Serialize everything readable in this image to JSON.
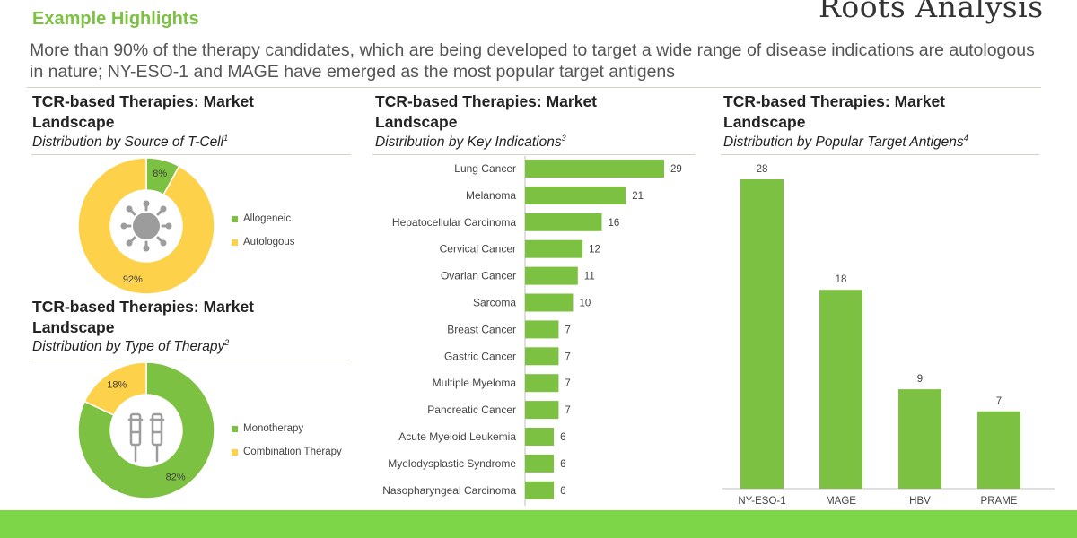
{
  "header": {
    "title": "Example Highlights",
    "subtitle": "More than 90% of the therapy candidates, which are being developed to target a wide range of disease indications are autologous in nature; NY-ESO-1 and MAGE have emerged as the most popular target antigens",
    "logo_text": "Roots Analysis"
  },
  "colors": {
    "green": "#7cc142",
    "yellow": "#fdd24a",
    "footer": "#7cd648"
  },
  "panels": {
    "source": {
      "title": "TCR-based Therapies: Market Landscape",
      "subtitle": "Distribution by Source of T-Cell",
      "note": "1",
      "icon": "virus-icon"
    },
    "therapy": {
      "title": "TCR-based Therapies: Market Landscape",
      "subtitle": "Distribution by Type of Therapy",
      "note": "2",
      "icon": "crutches-icon"
    },
    "indications": {
      "title": "TCR-based Therapies: Market Landscape",
      "subtitle": "Distribution by Key Indications",
      "note": "3"
    },
    "antigens": {
      "title": "TCR-based Therapies: Market Landscape",
      "subtitle": "Distribution by Popular Target Antigens",
      "note": "4"
    }
  },
  "chart_data": [
    {
      "type": "pie",
      "labels": [
        "Allogeneic",
        "Autologous"
      ],
      "values": [
        8,
        92
      ],
      "value_labels": [
        "8%",
        "92%"
      ],
      "colors": [
        "#7cc142",
        "#fdd24a"
      ],
      "legend": "right"
    },
    {
      "type": "pie",
      "labels": [
        "Monotherapy",
        "Combination Therapy"
      ],
      "values": [
        82,
        18
      ],
      "value_labels": [
        "82%",
        "18%"
      ],
      "colors": [
        "#7cc142",
        "#fdd24a"
      ],
      "legend": "right"
    },
    {
      "type": "bar",
      "orientation": "horizontal",
      "categories": [
        "Lung Cancer",
        "Melanoma",
        "Hepatocellular Carcinoma",
        "Cervical Cancer",
        "Ovarian Cancer",
        "Sarcoma",
        "Breast Cancer",
        "Gastric Cancer",
        "Multiple Myeloma",
        "Pancreatic Cancer",
        "Acute Myeloid Leukemia",
        "Myelodysplastic Syndrome",
        "Nasopharyngeal Carcinoma"
      ],
      "values": [
        29,
        21,
        16,
        12,
        11,
        10,
        7,
        7,
        7,
        7,
        6,
        6,
        6
      ],
      "color": "#7cc142"
    },
    {
      "type": "bar",
      "orientation": "vertical",
      "categories": [
        "NY-ESO-1",
        "MAGE",
        "HBV",
        "PRAME"
      ],
      "values": [
        28,
        18,
        9,
        7
      ],
      "color": "#7cc142"
    }
  ]
}
